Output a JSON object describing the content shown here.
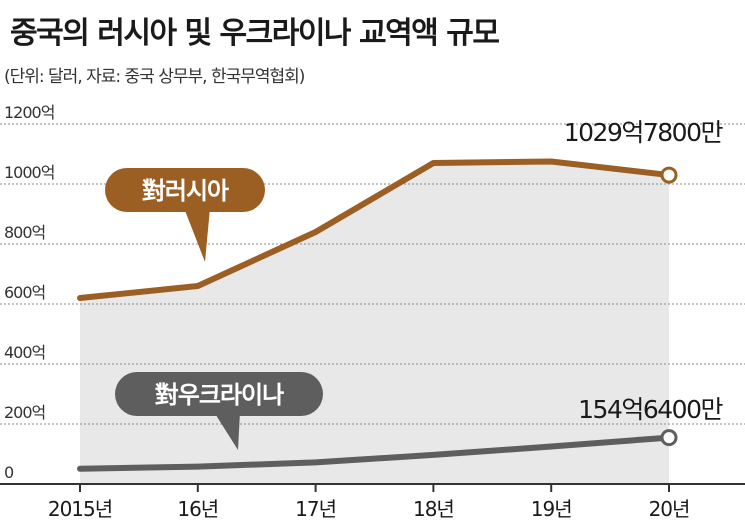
{
  "header": {
    "title": "중국의 러시아 및 우크라이나 교역액 규모",
    "subtitle": "(단위: 달러, 자료: 중국 상무부, 한국무역협회)"
  },
  "colors": {
    "russia": "#9c5f23",
    "ukraine": "#5e5e5e",
    "fill": "#e8e8e8",
    "grid": "#8a8a8a"
  },
  "chart_data": {
    "type": "line",
    "title": "중국의 러시아 및 우크라이나 교역액 규모",
    "subtitle": "(단위: 달러, 자료: 중국 상무부, 한국무역협회)",
    "categories": [
      "2015년",
      "16년",
      "17년",
      "18년",
      "19년",
      "20년"
    ],
    "y_ticks": [
      "0",
      "200억",
      "400억",
      "600억",
      "800억",
      "1000억",
      "1200억"
    ],
    "ylim": [
      0,
      1200
    ],
    "grid": true,
    "series": [
      {
        "name": "對러시아",
        "values": [
          620,
          660,
          840,
          1070,
          1075,
          1029.78
        ],
        "end_label": "1029억7800만"
      },
      {
        "name": "對우크라이나",
        "values": [
          51,
          58,
          72,
          97,
          125,
          154.64
        ],
        "end_label": "154억6400만"
      }
    ]
  }
}
